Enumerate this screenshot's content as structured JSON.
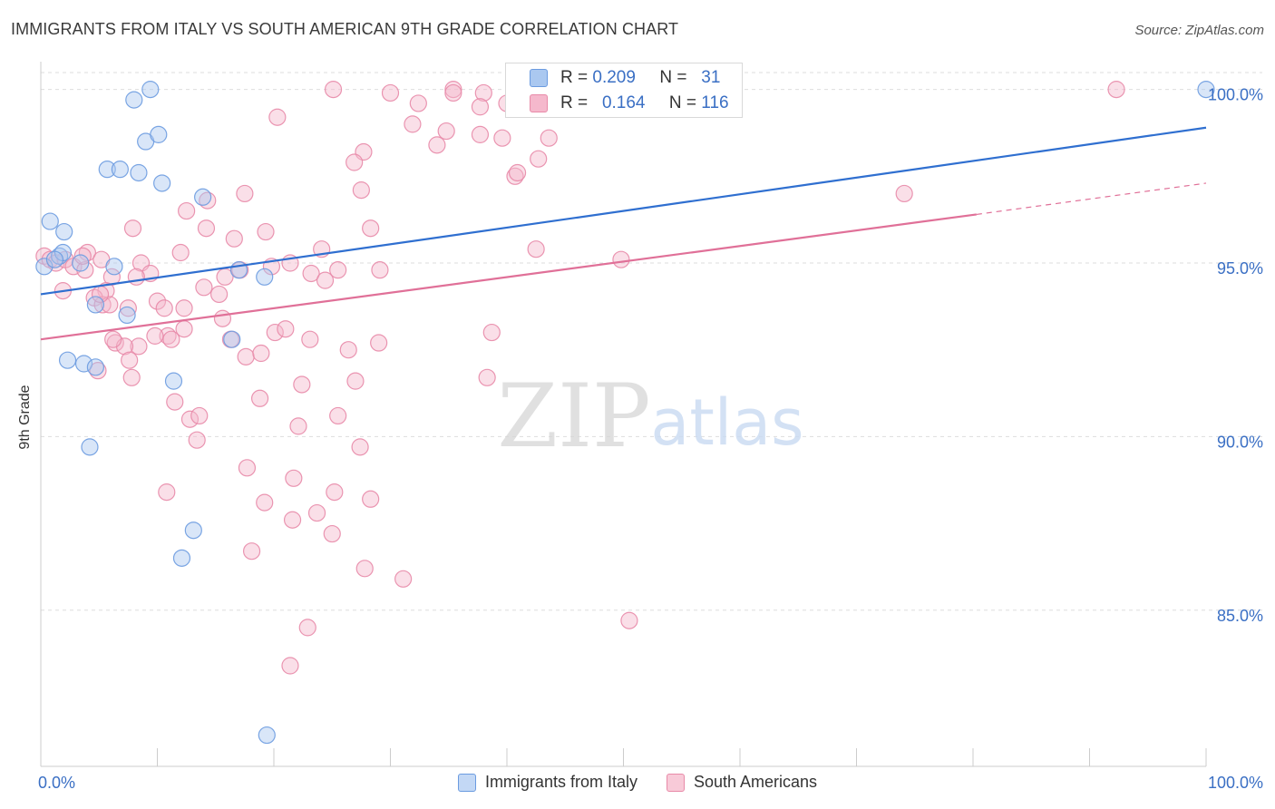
{
  "title": "IMMIGRANTS FROM ITALY VS SOUTH AMERICAN 9TH GRADE CORRELATION CHART",
  "source": "Source: ZipAtlas.com",
  "watermark": {
    "zip": "ZIP",
    "atlas": "atlas"
  },
  "colors": {
    "blue_fill": "#aac8f0",
    "blue_stroke": "#6b9be0",
    "blue_line": "#2f6fd0",
    "pink_fill": "#f5b8cc",
    "pink_stroke": "#e88aa8",
    "pink_line": "#e07098",
    "tick_label": "#3a6fc4",
    "grid": "#dddddd"
  },
  "stats": [
    {
      "r_label": "R =",
      "r_value": "0.209",
      "n_label": "N =",
      "n_value": "31",
      "series": "blue"
    },
    {
      "r_label": "R =",
      "r_value": "0.164",
      "n_label": "N =",
      "n_value": "116",
      "series": "pink"
    }
  ],
  "chart_data": {
    "type": "scatter",
    "title": "IMMIGRANTS FROM ITALY VS SOUTH AMERICAN 9TH GRADE CORRELATION CHART",
    "xlabel": "",
    "ylabel": "9th Grade",
    "xlim": [
      0,
      100
    ],
    "ylim": [
      80.5,
      100.8
    ],
    "x_tick_labels": [
      {
        "value": 0,
        "label": "0.0%"
      },
      {
        "value": 100,
        "label": "100.0%"
      }
    ],
    "y_tick_labels": [
      {
        "value": 100,
        "label": "100.0%"
      },
      {
        "value": 95,
        "label": "95.0%"
      },
      {
        "value": 90,
        "label": "90.0%"
      },
      {
        "value": 85,
        "label": "85.0%"
      }
    ],
    "grid": true,
    "legend_position": "bottom",
    "series": [
      {
        "name": "Immigrants from Italy",
        "color": "blue",
        "trend": {
          "x0": 0,
          "y0": 94.1,
          "x1": 100,
          "y1": 98.9
        },
        "points": [
          [
            0.3,
            94.9
          ],
          [
            0.8,
            96.2
          ],
          [
            2.0,
            95.9
          ],
          [
            1.6,
            95.2
          ],
          [
            1.9,
            95.3
          ],
          [
            3.4,
            95.0
          ],
          [
            6.3,
            94.9
          ],
          [
            9.4,
            100.0
          ],
          [
            8.0,
            99.7
          ],
          [
            9.0,
            98.5
          ],
          [
            10.1,
            98.7
          ],
          [
            5.7,
            97.7
          ],
          [
            6.8,
            97.7
          ],
          [
            8.4,
            97.6
          ],
          [
            10.4,
            97.3
          ],
          [
            13.9,
            96.9
          ],
          [
            17.0,
            94.8
          ],
          [
            19.2,
            94.6
          ],
          [
            4.7,
            93.8
          ],
          [
            7.4,
            93.5
          ],
          [
            16.4,
            92.8
          ],
          [
            2.3,
            92.2
          ],
          [
            3.7,
            92.1
          ],
          [
            4.7,
            92.0
          ],
          [
            11.4,
            91.6
          ],
          [
            4.2,
            89.7
          ],
          [
            13.1,
            87.3
          ],
          [
            12.1,
            86.5
          ],
          [
            19.4,
            81.4
          ],
          [
            100.0,
            100.0
          ],
          [
            1.2,
            95.1
          ]
        ]
      },
      {
        "name": "South Americans",
        "color": "pink",
        "trend": {
          "x0": 0,
          "y0": 92.8,
          "x1": 80.3,
          "y1": 96.4,
          "dash_x1": 100,
          "dash_y1": 97.3
        },
        "points": [
          [
            0.3,
            95.2
          ],
          [
            0.8,
            95.1
          ],
          [
            1.3,
            95.0
          ],
          [
            2.1,
            95.1
          ],
          [
            2.8,
            94.9
          ],
          [
            3.8,
            94.8
          ],
          [
            1.9,
            94.2
          ],
          [
            4.0,
            95.3
          ],
          [
            5.2,
            95.1
          ],
          [
            8.6,
            95.0
          ],
          [
            9.4,
            94.7
          ],
          [
            8.2,
            94.6
          ],
          [
            6.1,
            94.6
          ],
          [
            5.6,
            94.2
          ],
          [
            4.6,
            94.0
          ],
          [
            5.3,
            93.8
          ],
          [
            7.5,
            93.7
          ],
          [
            10.0,
            93.9
          ],
          [
            10.6,
            93.7
          ],
          [
            12.3,
            93.7
          ],
          [
            14.0,
            94.3
          ],
          [
            15.3,
            94.1
          ],
          [
            15.8,
            94.6
          ],
          [
            17.1,
            94.8
          ],
          [
            19.8,
            94.9
          ],
          [
            21.4,
            95.0
          ],
          [
            23.2,
            94.7
          ],
          [
            24.4,
            94.5
          ],
          [
            25.5,
            94.8
          ],
          [
            29.1,
            94.8
          ],
          [
            24.1,
            95.4
          ],
          [
            16.6,
            95.7
          ],
          [
            19.3,
            95.9
          ],
          [
            14.2,
            96.0
          ],
          [
            7.9,
            96.0
          ],
          [
            12.5,
            96.5
          ],
          [
            14.3,
            96.8
          ],
          [
            17.5,
            97.0
          ],
          [
            27.5,
            97.1
          ],
          [
            28.3,
            96.0
          ],
          [
            5.9,
            93.8
          ],
          [
            12.3,
            93.1
          ],
          [
            10.9,
            92.9
          ],
          [
            9.8,
            92.9
          ],
          [
            11.2,
            92.8
          ],
          [
            8.4,
            92.6
          ],
          [
            6.4,
            92.7
          ],
          [
            7.2,
            92.6
          ],
          [
            6.2,
            92.8
          ],
          [
            15.6,
            93.4
          ],
          [
            16.3,
            92.8
          ],
          [
            17.6,
            92.3
          ],
          [
            18.9,
            92.4
          ],
          [
            20.1,
            93.0
          ],
          [
            21.0,
            93.1
          ],
          [
            23.1,
            92.8
          ],
          [
            26.4,
            92.5
          ],
          [
            29.0,
            92.7
          ],
          [
            38.7,
            93.0
          ],
          [
            7.6,
            92.2
          ],
          [
            4.9,
            91.9
          ],
          [
            7.8,
            91.7
          ],
          [
            22.4,
            91.5
          ],
          [
            27.0,
            91.6
          ],
          [
            11.5,
            91.0
          ],
          [
            18.8,
            91.1
          ],
          [
            12.8,
            90.5
          ],
          [
            13.6,
            90.6
          ],
          [
            25.5,
            90.6
          ],
          [
            22.1,
            90.3
          ],
          [
            13.4,
            89.9
          ],
          [
            27.4,
            89.7
          ],
          [
            17.7,
            89.1
          ],
          [
            10.8,
            88.4
          ],
          [
            21.7,
            88.8
          ],
          [
            25.2,
            88.4
          ],
          [
            28.3,
            88.2
          ],
          [
            19.2,
            88.1
          ],
          [
            21.6,
            87.6
          ],
          [
            23.7,
            87.8
          ],
          [
            25.0,
            87.2
          ],
          [
            18.1,
            86.7
          ],
          [
            27.8,
            86.2
          ],
          [
            31.1,
            85.9
          ],
          [
            50.5,
            84.7
          ],
          [
            22.9,
            84.5
          ],
          [
            21.4,
            83.4
          ],
          [
            34.0,
            98.4
          ],
          [
            32.4,
            99.6
          ],
          [
            34.8,
            98.8
          ],
          [
            27.7,
            98.2
          ],
          [
            30.0,
            99.9
          ],
          [
            31.9,
            99.0
          ],
          [
            26.9,
            97.9
          ],
          [
            35.4,
            100.0
          ],
          [
            38.0,
            99.9
          ],
          [
            41.7,
            100.0
          ],
          [
            44.0,
            100.0
          ],
          [
            46.6,
            99.9
          ],
          [
            25.1,
            100.0
          ],
          [
            20.3,
            99.2
          ],
          [
            35.4,
            99.9
          ],
          [
            43.6,
            98.6
          ],
          [
            42.7,
            98.0
          ],
          [
            37.7,
            98.7
          ],
          [
            40.0,
            99.6
          ],
          [
            37.7,
            99.5
          ],
          [
            40.7,
            97.5
          ],
          [
            40.9,
            97.6
          ],
          [
            39.6,
            98.6
          ],
          [
            42.5,
            95.4
          ],
          [
            49.8,
            95.1
          ],
          [
            74.1,
            97.0
          ],
          [
            92.3,
            100.0
          ],
          [
            38.3,
            91.7
          ],
          [
            12.0,
            95.3
          ],
          [
            5.1,
            94.1
          ],
          [
            3.6,
            95.2
          ]
        ]
      }
    ]
  },
  "legend": [
    {
      "label": "Immigrants from Italy",
      "color": "blue"
    },
    {
      "label": "South Americans",
      "color": "pink"
    }
  ]
}
